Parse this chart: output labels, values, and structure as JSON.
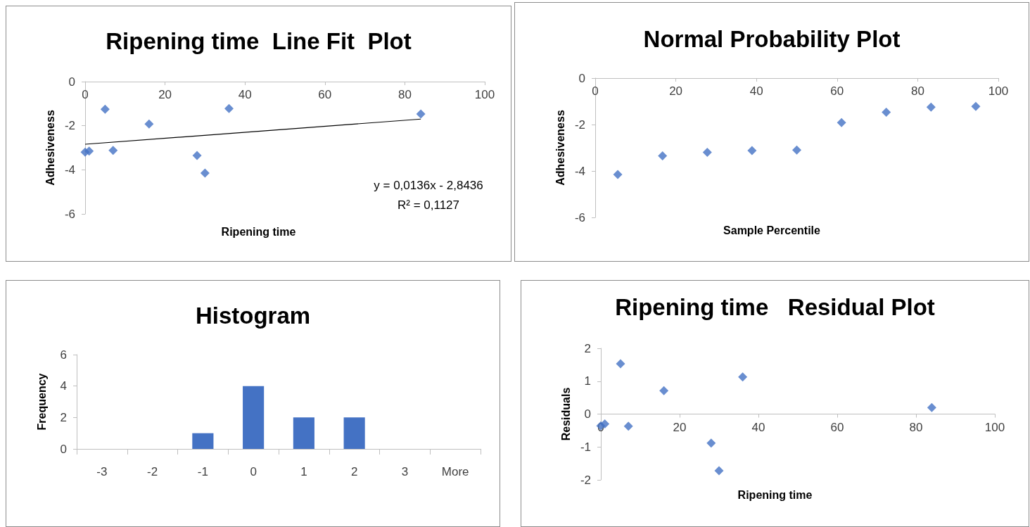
{
  "chart_data": [
    {
      "type": "scatter",
      "title": "Ripening time  Line Fit  Plot",
      "xlabel": "Ripening time",
      "ylabel": "Adhesiveness",
      "xlim": [
        0,
        100
      ],
      "xticks": [
        0,
        20,
        40,
        60,
        80,
        100
      ],
      "ylim": [
        -6,
        0
      ],
      "yticks": [
        -6,
        -4,
        -2,
        0
      ],
      "annotations": [
        "y = 0,0136x - 2,8436",
        "R² = 0,1127"
      ],
      "series": [
        {
          "marker": "diamond",
          "color": "#4472c4",
          "x": [
            0,
            1,
            5,
            7,
            16,
            28,
            30,
            36,
            84
          ],
          "values": [
            -3.2,
            -3.15,
            -1.25,
            -3.12,
            -1.92,
            -3.35,
            -4.15,
            -1.22,
            -1.47
          ]
        },
        {
          "type": "line",
          "marker": "none",
          "color": "#000000",
          "x": [
            0,
            84
          ],
          "values": [
            -2.84,
            -1.7
          ]
        }
      ]
    },
    {
      "type": "scatter",
      "title": "Normal Probability Plot",
      "xlabel": "Sample Percentile",
      "ylabel": "Adhesiveness",
      "xlim": [
        0,
        100
      ],
      "xticks": [
        0,
        20,
        40,
        60,
        80,
        100
      ],
      "ylim": [
        -6,
        0
      ],
      "yticks": [
        -6,
        -4,
        -2,
        0
      ],
      "series": [
        {
          "marker": "diamond",
          "color": "#4472c4",
          "x": [
            5.6,
            16.7,
            27.8,
            38.9,
            50,
            61.1,
            72.2,
            83.3,
            94.4
          ],
          "values": [
            -4.15,
            -3.35,
            -3.2,
            -3.12,
            -3.1,
            -1.92,
            -1.47,
            -1.25,
            -1.22
          ]
        }
      ]
    },
    {
      "type": "bar",
      "title": "Histogram",
      "ylabel": "Frequency",
      "categories": [
        "-3",
        "-2",
        "-1",
        "0",
        "1",
        "2",
        "3",
        "More"
      ],
      "ylim": [
        0,
        6
      ],
      "yticks": [
        0,
        2,
        4,
        6
      ],
      "series": [
        {
          "color": "#4472c4",
          "values": [
            0,
            0,
            1,
            4,
            2,
            2,
            0,
            0
          ]
        }
      ]
    },
    {
      "type": "scatter",
      "title": "Ripening time   Residual Plot",
      "xlabel": "Ripening time",
      "ylabel": "Residuals",
      "xlim": [
        0,
        100
      ],
      "xticks": [
        0,
        20,
        40,
        60,
        80,
        100
      ],
      "ylim": [
        -2,
        2
      ],
      "yticks": [
        -2,
        -1,
        0,
        1,
        2
      ],
      "series": [
        {
          "marker": "diamond",
          "color": "#4472c4",
          "x": [
            0,
            1,
            5,
            7,
            16,
            28,
            30,
            36,
            84
          ],
          "values": [
            -0.36,
            -0.3,
            1.53,
            -0.37,
            0.71,
            -0.88,
            -1.72,
            1.13,
            0.2
          ]
        }
      ]
    }
  ]
}
